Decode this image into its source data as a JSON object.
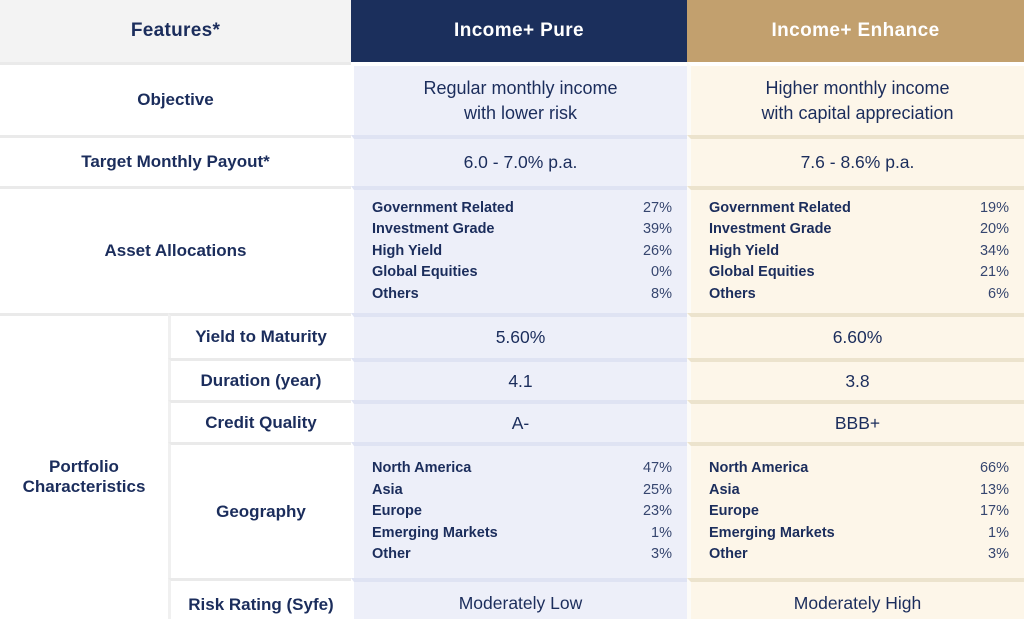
{
  "colors": {
    "navy": "#1b2f5c",
    "tan": "#c2a06e",
    "lavender": "#edeff9",
    "cream": "#fdf6e9",
    "header_gray": "#f3f3f3",
    "text_navy": "#1b2d5c"
  },
  "header": {
    "features": "Features*",
    "pure": "Income+ Pure",
    "enhance": "Income+ Enhance"
  },
  "objective": {
    "label": "Objective",
    "pure_line1": "Regular monthly income",
    "pure_line2": "with lower risk",
    "enhance_line1": "Higher monthly income",
    "enhance_line2": "with capital appreciation"
  },
  "payout": {
    "label": "Target Monthly Payout*",
    "pure": "6.0 - 7.0% p.a.",
    "enhance": "7.6 - 8.6% p.a."
  },
  "asset_allocations": {
    "label": "Asset Allocations",
    "pure": [
      {
        "name": "Government Related",
        "value": "27%"
      },
      {
        "name": "Investment Grade",
        "value": "39%"
      },
      {
        "name": "High Yield",
        "value": "26%"
      },
      {
        "name": "Global Equities",
        "value": "0%"
      },
      {
        "name": "Others",
        "value": "8%"
      }
    ],
    "enhance": [
      {
        "name": "Government Related",
        "value": "19%"
      },
      {
        "name": "Investment Grade",
        "value": "20%"
      },
      {
        "name": "High Yield",
        "value": "34%"
      },
      {
        "name": "Global Equities",
        "value": "21%"
      },
      {
        "name": "Others",
        "value": "6%"
      }
    ]
  },
  "portfolio": {
    "label_line1": "Portfolio",
    "label_line2": "Characteristics",
    "yield": {
      "label": "Yield to Maturity",
      "pure": "5.60%",
      "enhance": "6.60%"
    },
    "duration": {
      "label": "Duration (year)",
      "pure": "4.1",
      "enhance": "3.8"
    },
    "credit": {
      "label": "Credit Quality",
      "pure": "A-",
      "enhance": "BBB+"
    },
    "geography": {
      "label": "Geography",
      "pure": [
        {
          "name": "North America",
          "value": "47%"
        },
        {
          "name": "Asia",
          "value": "25%"
        },
        {
          "name": "Europe",
          "value": "23%"
        },
        {
          "name": "Emerging Markets",
          "value": "1%"
        },
        {
          "name": "Other",
          "value": "3%"
        }
      ],
      "enhance": [
        {
          "name": "North America",
          "value": "66%"
        },
        {
          "name": "Asia",
          "value": "13%"
        },
        {
          "name": "Europe",
          "value": "17%"
        },
        {
          "name": "Emerging Markets",
          "value": "1%"
        },
        {
          "name": "Other",
          "value": "3%"
        }
      ]
    },
    "risk": {
      "label": "Risk Rating (Syfe)",
      "pure": "Moderately Low",
      "enhance": "Moderately High"
    }
  },
  "chart_data": {
    "type": "table",
    "title": "Income+ Pure vs Income+ Enhance feature comparison",
    "columns": [
      "Features*",
      "Income+ Pure",
      "Income+ Enhance"
    ],
    "rows": [
      [
        "Objective",
        "Regular monthly income with lower risk",
        "Higher monthly income with capital appreciation"
      ],
      [
        "Target Monthly Payout*",
        "6.0 - 7.0% p.a.",
        "7.6 - 8.6% p.a."
      ],
      [
        "Asset Allocations",
        "Government Related 27%; Investment Grade 39%; High Yield 26%; Global Equities 0%; Others 8%",
        "Government Related 19%; Investment Grade 20%; High Yield 34%; Global Equities 21%; Others 6%"
      ],
      [
        "Portfolio Characteristics - Yield to Maturity",
        "5.60%",
        "6.60%"
      ],
      [
        "Portfolio Characteristics - Duration (year)",
        "4.1",
        "3.8"
      ],
      [
        "Portfolio Characteristics - Credit Quality",
        "A-",
        "BBB+"
      ],
      [
        "Portfolio Characteristics - Geography",
        "North America 47%; Asia 25%; Europe 23%; Emerging Markets 1%; Other 3%",
        "North America 66%; Asia 13%; Europe 17%; Emerging Markets 1%; Other 3%"
      ],
      [
        "Portfolio Characteristics - Risk Rating (Syfe)",
        "Moderately Low",
        "Moderately High"
      ]
    ]
  }
}
